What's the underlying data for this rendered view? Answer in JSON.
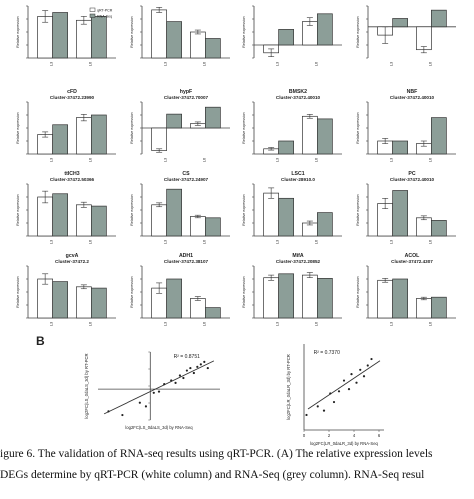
{
  "panel_b_label": "B",
  "caption": {
    "line1": "igure 6.  The validation of RNA-seq results using qRT-PCR. (A) The relative expression levels",
    "line2": " DEGs determine by qRT-PCR (white column) and RNA-Seq (grey column).  RNA-Seq resul"
  },
  "colors": {
    "qpcr": "#ffffff",
    "rnaseq": "#8c9e98",
    "line": "#444444"
  },
  "legend": [
    "qRT-PCR",
    "RNA-Seq"
  ],
  "chart_data": [
    {
      "type": "bar",
      "title": "",
      "subtitle": "",
      "ylabel": "Relative expression",
      "categories": [
        "L3",
        "L6"
      ],
      "series": [
        {
          "name": "qRT-PCR",
          "values": [
            6.4,
            5.8
          ]
        },
        {
          "name": "RNA-Seq",
          "values": [
            7.0,
            6.4
          ]
        }
      ],
      "err": [
        0.9,
        0.6
      ],
      "ylim": [
        0,
        8
      ]
    },
    {
      "type": "bar",
      "title": "",
      "subtitle": "",
      "ylabel": "Relative expression",
      "categories": [
        "L3",
        "L6"
      ],
      "series": [
        {
          "name": "qRT-PCR",
          "values": [
            7.4,
            4.0
          ]
        },
        {
          "name": "RNA-Seq",
          "values": [
            5.6,
            3.0
          ]
        }
      ],
      "err": [
        0.4,
        0.3
      ],
      "ylim": [
        0,
        8
      ]
    },
    {
      "type": "bar",
      "title": "",
      "subtitle": "",
      "ylabel": "Relative expression",
      "categories": [
        "L3",
        "L6"
      ],
      "series": [
        {
          "name": "qRT-PCR",
          "values": [
            -0.6,
            1.8
          ]
        },
        {
          "name": "RNA-Seq",
          "values": [
            1.2,
            2.4
          ]
        }
      ],
      "err": [
        0.3,
        0.3
      ],
      "ylim": [
        -1,
        3
      ]
    },
    {
      "type": "bar",
      "title": "",
      "subtitle": "",
      "ylabel": "Relative expression",
      "categories": [
        "L3",
        "L6"
      ],
      "series": [
        {
          "name": "qRT-PCR",
          "values": [
            -0.8,
            -2.2
          ]
        },
        {
          "name": "RNA-Seq",
          "values": [
            0.8,
            1.6
          ]
        }
      ],
      "err": [
        0.8,
        0.3
      ],
      "ylim": [
        -3,
        2
      ]
    },
    {
      "type": "bar",
      "title": "cFD",
      "subtitle": "Cluster-37472.23990",
      "ylabel": "Relative expression",
      "categories": [
        "L3",
        "L6"
      ],
      "series": [
        {
          "name": "qRT-PCR",
          "values": [
            3.0,
            5.6
          ]
        },
        {
          "name": "RNA-Seq",
          "values": [
            4.5,
            6.0
          ]
        }
      ],
      "err": [
        0.4,
        0.5
      ],
      "ylim": [
        0,
        8
      ]
    },
    {
      "type": "bar",
      "title": "hypF",
      "subtitle": "Cluster-37472.70007",
      "ylabel": "Relative expression",
      "categories": [
        "L3",
        "L6"
      ],
      "series": [
        {
          "name": "qRT-PCR",
          "values": [
            -2.6,
            0.5
          ]
        },
        {
          "name": "RNA-Seq",
          "values": [
            1.6,
            2.4
          ]
        }
      ],
      "err": [
        0.2,
        0.2
      ],
      "ylim": [
        -3,
        3
      ]
    },
    {
      "type": "bar",
      "title": "BMSK2",
      "subtitle": "Cluster-37472.40010",
      "ylabel": "Relative expression",
      "categories": [
        "L3",
        "L6"
      ],
      "series": [
        {
          "name": "qRT-PCR",
          "values": [
            0.8,
            5.8
          ]
        },
        {
          "name": "RNA-Seq",
          "values": [
            2.0,
            5.4
          ]
        }
      ],
      "err": [
        0.2,
        0.3
      ],
      "ylim": [
        0,
        8
      ]
    },
    {
      "type": "bar",
      "title": "NBF",
      "subtitle": "Cluster-37472.40010",
      "ylabel": "Relative expression",
      "categories": [
        "L3",
        "L6"
      ],
      "series": [
        {
          "name": "qRT-PCR",
          "values": [
            1.0,
            0.8
          ]
        },
        {
          "name": "RNA-Seq",
          "values": [
            1.0,
            2.8
          ]
        }
      ],
      "err": [
        0.2,
        0.2
      ],
      "ylim": [
        0,
        4
      ]
    },
    {
      "type": "bar",
      "title": "ttICH3",
      "subtitle": "Cluster-37472.50366",
      "ylabel": "Relative expression",
      "categories": [
        "L3",
        "L6"
      ],
      "series": [
        {
          "name": "qRT-PCR",
          "values": [
            6.0,
            4.8
          ]
        },
        {
          "name": "RNA-Seq",
          "values": [
            6.5,
            4.6
          ]
        }
      ],
      "err": [
        0.9,
        0.4
      ],
      "ylim": [
        0,
        8
      ]
    },
    {
      "type": "bar",
      "title": "CS",
      "subtitle": "Cluster-37472.24907",
      "ylabel": "Relative expression",
      "categories": [
        "L3",
        "L6"
      ],
      "series": [
        {
          "name": "qRT-PCR",
          "values": [
            4.8,
            3.0
          ]
        },
        {
          "name": "RNA-Seq",
          "values": [
            7.2,
            2.8
          ]
        }
      ],
      "err": [
        0.3,
        0.2
      ],
      "ylim": [
        0,
        8
      ]
    },
    {
      "type": "bar",
      "title": "LSC1",
      "subtitle": "Cluster-28910.0",
      "ylabel": "Relative expression",
      "categories": [
        "L3",
        "L6"
      ],
      "series": [
        {
          "name": "qRT-PCR",
          "values": [
            6.6,
            2.0
          ]
        },
        {
          "name": "RNA-Seq",
          "values": [
            5.8,
            3.6
          ]
        }
      ],
      "err": [
        0.8,
        0.3
      ],
      "ylim": [
        0,
        8
      ]
    },
    {
      "type": "bar",
      "title": "PC",
      "subtitle": "Cluster-37472.40010",
      "ylabel": "Relative expression",
      "categories": [
        "L3",
        "L6"
      ],
      "series": [
        {
          "name": "qRT-PCR",
          "values": [
            5.0,
            2.8
          ]
        },
        {
          "name": "RNA-Seq",
          "values": [
            7.0,
            2.4
          ]
        }
      ],
      "err": [
        0.8,
        0.3
      ],
      "ylim": [
        0,
        8
      ]
    },
    {
      "type": "bar",
      "title": "gcvA",
      "subtitle": "Cluster-37472.2",
      "ylabel": "Relative expression",
      "categories": [
        "L3",
        "L6"
      ],
      "series": [
        {
          "name": "qRT-PCR",
          "values": [
            6.0,
            4.8
          ]
        },
        {
          "name": "RNA-Seq",
          "values": [
            5.6,
            4.6
          ]
        }
      ],
      "err": [
        0.8,
        0.3
      ],
      "ylim": [
        0,
        8
      ]
    },
    {
      "type": "bar",
      "title": "ADH1",
      "subtitle": "Cluster-37472.38107",
      "ylabel": "Relative expression",
      "categories": [
        "L3",
        "L6"
      ],
      "series": [
        {
          "name": "qRT-PCR",
          "values": [
            4.6,
            3.0
          ]
        },
        {
          "name": "RNA-Seq",
          "values": [
            6.0,
            1.6
          ]
        }
      ],
      "err": [
        0.8,
        0.3
      ],
      "ylim": [
        0,
        8
      ]
    },
    {
      "type": "bar",
      "title": "MifA",
      "subtitle": "Cluster-37472.20852",
      "ylabel": "Relative expression",
      "categories": [
        "L3",
        "L6"
      ],
      "series": [
        {
          "name": "qRT-PCR",
          "values": [
            6.2,
            6.6
          ]
        },
        {
          "name": "RNA-Seq",
          "values": [
            6.8,
            6.1
          ]
        }
      ],
      "err": [
        0.4,
        0.4
      ],
      "ylim": [
        0,
        8
      ]
    },
    {
      "type": "bar",
      "title": "ACOL",
      "subtitle": "Cluster-37472.4307",
      "ylabel": "Relative expression",
      "categories": [
        "L3",
        "L6"
      ],
      "series": [
        {
          "name": "qRT-PCR",
          "values": [
            5.8,
            3.0
          ]
        },
        {
          "name": "RNA-Seq",
          "values": [
            6.0,
            3.2
          ]
        }
      ],
      "err": [
        0.3,
        0.2
      ],
      "ylim": [
        0,
        8
      ]
    },
    {
      "type": "scatter",
      "annotation": "R² = 0.8751",
      "xlabel": "log2FC(LS_0daLS_3d) by RNA-Seq",
      "ylabel": "log2FC(LS_0daLS_3d) by RT-PCR",
      "x": [
        -4.8,
        -3.2,
        -1.2,
        -0.5,
        0.4,
        1.0,
        1.6,
        2.4,
        2.9,
        3.4,
        3.8,
        4.2,
        4.6,
        5.0,
        5.4,
        5.8,
        6.2,
        6.6
      ],
      "y": [
        -3.6,
        -4.2,
        -2.2,
        -2.8,
        -0.6,
        -0.4,
        0.8,
        1.4,
        1.0,
        2.2,
        1.8,
        3.0,
        3.4,
        2.6,
        3.6,
        4.0,
        4.4,
        3.4
      ],
      "fit": {
        "slope": 0.68,
        "intercept": -0.4
      },
      "xlim": [
        -6,
        8
      ],
      "ylim": [
        -5,
        6
      ]
    },
    {
      "type": "scatter",
      "annotation": "R² = 0.7370",
      "xlabel": "log2FC(LR_0daLR_3d) by RNA-Seq",
      "ylabel": "log2FC(LR_0daLR_3d) by RT-PCR",
      "xticks": [
        0,
        2,
        4,
        6
      ],
      "x": [
        0.2,
        1.1,
        1.6,
        2.1,
        2.4,
        2.8,
        3.2,
        3.6,
        3.8,
        4.2,
        4.5,
        4.8,
        5.1,
        5.4
      ],
      "y": [
        -1.6,
        -0.8,
        -1.2,
        0.4,
        -0.4,
        0.6,
        1.6,
        0.8,
        2.2,
        1.4,
        2.6,
        2.0,
        3.0,
        3.6
      ],
      "fit": {
        "slope": 0.78,
        "intercept": -1.3
      },
      "xlim": [
        0,
        6.4
      ],
      "ylim": [
        -3,
        5
      ]
    }
  ]
}
